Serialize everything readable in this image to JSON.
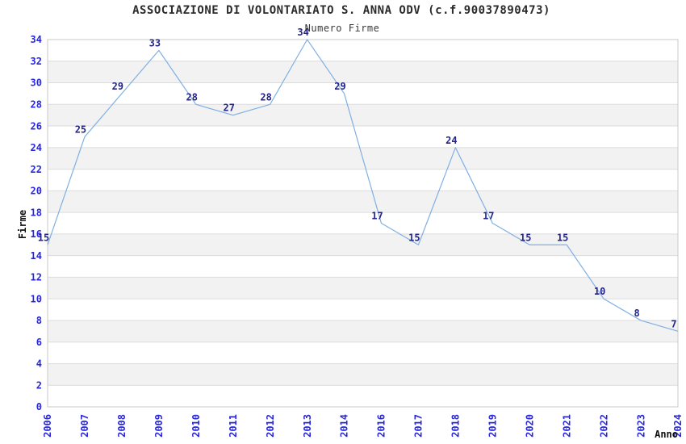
{
  "chart_data": {
    "type": "line",
    "title": "ASSOCIAZIONE DI VOLONTARIATO S. ANNA ODV (c.f.90037890473)",
    "subtitle": "Numero Firme",
    "xlabel": "Anno",
    "ylabel": "Firme",
    "categories": [
      "2006",
      "2007",
      "2008",
      "2009",
      "2010",
      "2011",
      "2012",
      "2013",
      "2014",
      "2016",
      "2017",
      "2018",
      "2019",
      "2020",
      "2021",
      "2022",
      "2023",
      "2024"
    ],
    "values": [
      15,
      25,
      29,
      33,
      28,
      27,
      28,
      34,
      29,
      17,
      15,
      24,
      17,
      15,
      15,
      10,
      8,
      7
    ],
    "ylim": [
      0,
      34
    ],
    "ytick_step": 2,
    "grid": true,
    "legend_position": "none",
    "colors": {
      "line": "#7fb0e2",
      "tick_label": "#2727dd",
      "data_label": "#24248c",
      "band_white": "#ffffff",
      "band_gray": "#f2f2f2",
      "gridline": "#dcdcdc",
      "frame": "#c9c9c9",
      "title": "#2b2b2b",
      "subtitle": "#3a3a3a",
      "axis_title": "#111111"
    }
  }
}
